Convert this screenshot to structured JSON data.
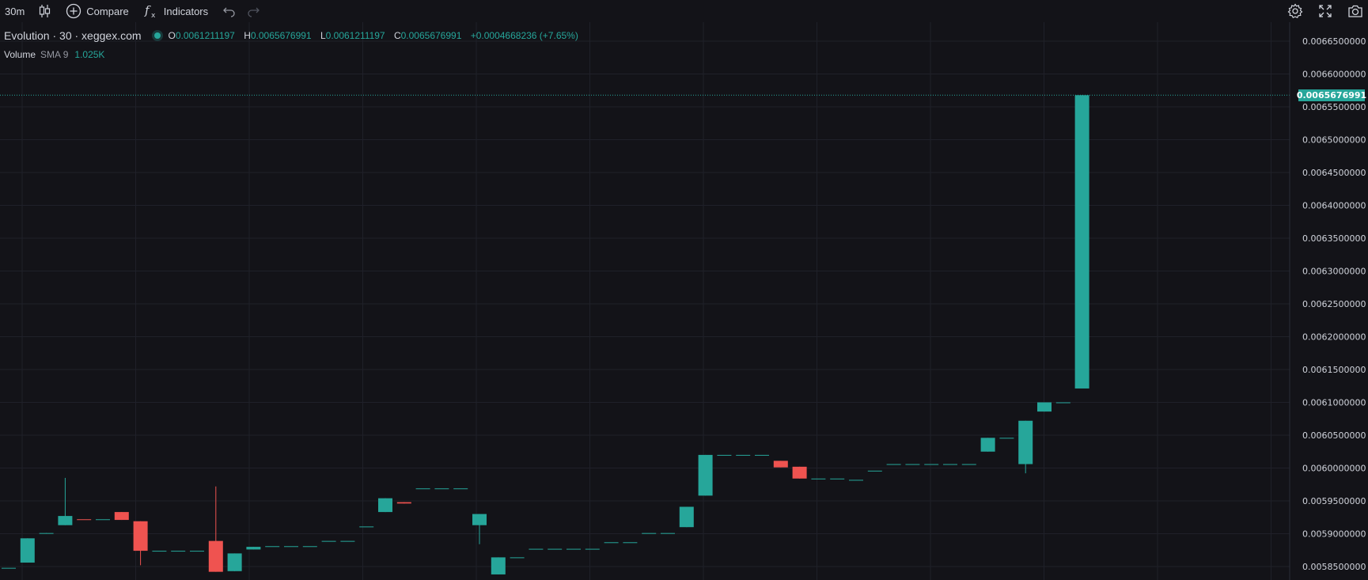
{
  "toolbar": {
    "interval": "30m",
    "compare_label": "Compare",
    "indicators_label": "Indicators",
    "icons": [
      "candles-icon",
      "plus-circle-icon",
      "fx-icon",
      "undo-icon",
      "redo-icon",
      "gear-icon",
      "fullscreen-icon",
      "camera-icon"
    ]
  },
  "legend": {
    "symbol": "Evolution · 30 · xeggex.com",
    "open_label": "O",
    "open": "0.0061211197",
    "high_label": "H",
    "high": "0.0065676991",
    "low_label": "L",
    "low": "0.0061211197",
    "close_label": "C",
    "close": "0.0065676991",
    "change": "+0.0004668236 (+7.65%)",
    "volume_label": "Volume",
    "volume_sma_label": "SMA 9",
    "volume_value": "1.025K"
  },
  "colors": {
    "background": "#131318",
    "grid": "#1f2029",
    "up": "#26a69a",
    "down": "#ef5350",
    "text": "#d1d4dc",
    "axis_text": "#d1d4dc"
  },
  "chart_data": {
    "type": "candlestick",
    "y_ticks": [
      "0.0066500000",
      "0.0066000000",
      "0.0065500000",
      "0.0065000000",
      "0.0064500000",
      "0.0064000000",
      "0.0063500000",
      "0.0063000000",
      "0.0062500000",
      "0.0062000000",
      "0.0061500000",
      "0.0061000000",
      "0.0060500000",
      "0.0060000000",
      "0.0059500000",
      "0.0059000000",
      "0.0058500000"
    ],
    "ylim": [
      0.00583,
      0.00668
    ],
    "last_price": "0.0065676991",
    "candles": [
      {
        "o": 0.005848,
        "h": 0.005848,
        "l": 0.005848,
        "c": 0.005848
      },
      {
        "o": 0.005856,
        "h": 0.005893,
        "l": 0.005856,
        "c": 0.005893
      },
      {
        "o": 0.0059,
        "h": 0.005901,
        "l": 0.0059,
        "c": 0.005901
      },
      {
        "o": 0.005913,
        "h": 0.005985,
        "l": 0.005913,
        "c": 0.005927
      },
      {
        "o": 0.005922,
        "h": 0.005922,
        "l": 0.005922,
        "c": 0.005921
      },
      {
        "o": 0.005922,
        "h": 0.005922,
        "l": 0.005922,
        "c": 0.005922
      },
      {
        "o": 0.005933,
        "h": 0.005933,
        "l": 0.005921,
        "c": 0.005921
      },
      {
        "o": 0.005919,
        "h": 0.005919,
        "l": 0.005852,
        "c": 0.005874
      },
      {
        "o": 0.005874,
        "h": 0.005874,
        "l": 0.005874,
        "c": 0.005874
      },
      {
        "o": 0.005874,
        "h": 0.005874,
        "l": 0.005874,
        "c": 0.005874
      },
      {
        "o": 0.005874,
        "h": 0.005874,
        "l": 0.005874,
        "c": 0.005874
      },
      {
        "o": 0.005889,
        "h": 0.005972,
        "l": 0.005842,
        "c": 0.005842
      },
      {
        "o": 0.005843,
        "h": 0.00587,
        "l": 0.005843,
        "c": 0.00587
      },
      {
        "o": 0.005876,
        "h": 0.00588,
        "l": 0.005876,
        "c": 0.00588
      },
      {
        "o": 0.005881,
        "h": 0.005881,
        "l": 0.005881,
        "c": 0.005881
      },
      {
        "o": 0.005881,
        "h": 0.005881,
        "l": 0.005881,
        "c": 0.005881
      },
      {
        "o": 0.005881,
        "h": 0.005881,
        "l": 0.005881,
        "c": 0.005881
      },
      {
        "o": 0.005889,
        "h": 0.005889,
        "l": 0.005889,
        "c": 0.005889
      },
      {
        "o": 0.005889,
        "h": 0.005889,
        "l": 0.005889,
        "c": 0.005889
      },
      {
        "o": 0.005911,
        "h": 0.005911,
        "l": 0.005911,
        "c": 0.005911
      },
      {
        "o": 0.005933,
        "h": 0.005954,
        "l": 0.005933,
        "c": 0.005954
      },
      {
        "o": 0.005948,
        "h": 0.005948,
        "l": 0.005946,
        "c": 0.005946
      },
      {
        "o": 0.005969,
        "h": 0.005969,
        "l": 0.005969,
        "c": 0.005969
      },
      {
        "o": 0.005969,
        "h": 0.005969,
        "l": 0.005969,
        "c": 0.005969
      },
      {
        "o": 0.005969,
        "h": 0.005969,
        "l": 0.005969,
        "c": 0.005969
      },
      {
        "o": 0.005913,
        "h": 0.00593,
        "l": 0.005884,
        "c": 0.00593
      },
      {
        "o": 0.005838,
        "h": 0.005864,
        "l": 0.005838,
        "c": 0.005864
      },
      {
        "o": 0.005864,
        "h": 0.005864,
        "l": 0.005864,
        "c": 0.005864
      },
      {
        "o": 0.005877,
        "h": 0.005877,
        "l": 0.005877,
        "c": 0.005877
      },
      {
        "o": 0.005877,
        "h": 0.005877,
        "l": 0.005877,
        "c": 0.005877
      },
      {
        "o": 0.005877,
        "h": 0.005877,
        "l": 0.005877,
        "c": 0.005877
      },
      {
        "o": 0.005877,
        "h": 0.005877,
        "l": 0.005877,
        "c": 0.005877
      },
      {
        "o": 0.005887,
        "h": 0.005887,
        "l": 0.005887,
        "c": 0.005887
      },
      {
        "o": 0.005887,
        "h": 0.005887,
        "l": 0.005887,
        "c": 0.005887
      },
      {
        "o": 0.005901,
        "h": 0.005901,
        "l": 0.005901,
        "c": 0.005901
      },
      {
        "o": 0.005901,
        "h": 0.005901,
        "l": 0.005901,
        "c": 0.005901
      },
      {
        "o": 0.00591,
        "h": 0.005941,
        "l": 0.00591,
        "c": 0.005941
      },
      {
        "o": 0.005958,
        "h": 0.00602,
        "l": 0.005958,
        "c": 0.00602
      },
      {
        "o": 0.00602,
        "h": 0.00602,
        "l": 0.00602,
        "c": 0.00602
      },
      {
        "o": 0.00602,
        "h": 0.00602,
        "l": 0.00602,
        "c": 0.00602
      },
      {
        "o": 0.00602,
        "h": 0.00602,
        "l": 0.00602,
        "c": 0.00602
      },
      {
        "o": 0.006011,
        "h": 0.006011,
        "l": 0.006001,
        "c": 0.006001
      },
      {
        "o": 0.006002,
        "h": 0.006002,
        "l": 0.005984,
        "c": 0.005984
      },
      {
        "o": 0.005984,
        "h": 0.005984,
        "l": 0.005984,
        "c": 0.005984
      },
      {
        "o": 0.005984,
        "h": 0.005984,
        "l": 0.005984,
        "c": 0.005984
      },
      {
        "o": 0.005982,
        "h": 0.005982,
        "l": 0.005982,
        "c": 0.005982
      },
      {
        "o": 0.005996,
        "h": 0.005996,
        "l": 0.005996,
        "c": 0.005996
      },
      {
        "o": 0.006006,
        "h": 0.006006,
        "l": 0.006006,
        "c": 0.006006
      },
      {
        "o": 0.006006,
        "h": 0.006006,
        "l": 0.006006,
        "c": 0.006006
      },
      {
        "o": 0.006006,
        "h": 0.006006,
        "l": 0.006006,
        "c": 0.006006
      },
      {
        "o": 0.006006,
        "h": 0.006006,
        "l": 0.006006,
        "c": 0.006006
      },
      {
        "o": 0.006006,
        "h": 0.006006,
        "l": 0.006006,
        "c": 0.006006
      },
      {
        "o": 0.006025,
        "h": 0.006046,
        "l": 0.006025,
        "c": 0.006046
      },
      {
        "o": 0.006046,
        "h": 0.006046,
        "l": 0.006046,
        "c": 0.006046
      },
      {
        "o": 0.006006,
        "h": 0.006072,
        "l": 0.005992,
        "c": 0.006072
      },
      {
        "o": 0.006086,
        "h": 0.0061,
        "l": 0.006086,
        "c": 0.0061
      },
      {
        "o": 0.0061,
        "h": 0.0061,
        "l": 0.0061,
        "c": 0.0061
      },
      {
        "o": 0.0061211197,
        "h": 0.0065676991,
        "l": 0.0061211197,
        "c": 0.0065676991
      }
    ]
  }
}
